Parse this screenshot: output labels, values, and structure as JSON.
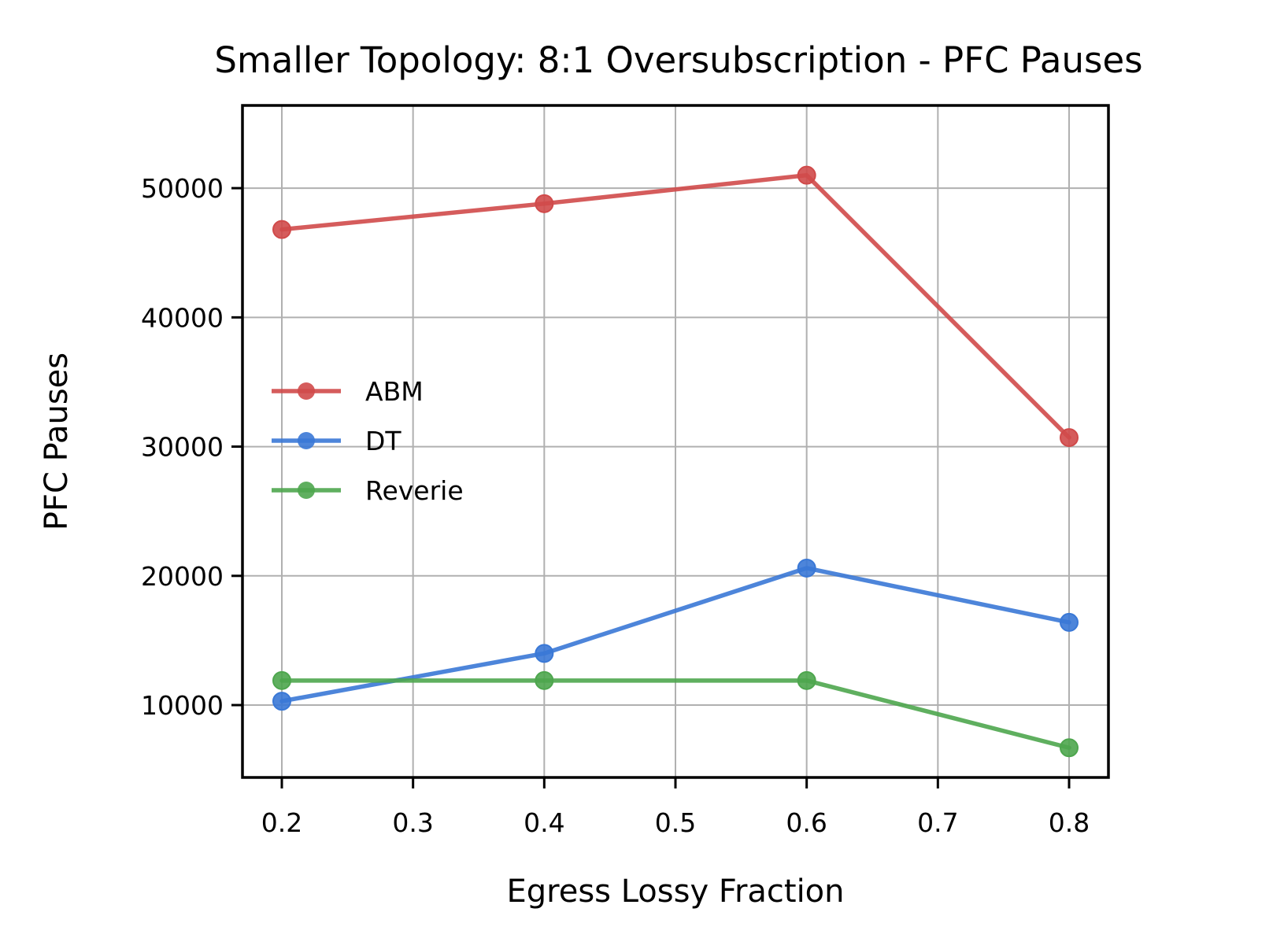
{
  "chart_data": {
    "type": "line",
    "title": "Smaller Topology: 8:1 Oversubscription - PFC Pauses",
    "xlabel": "Egress Lossy Fraction",
    "ylabel": "PFC Pauses",
    "x": [
      0.2,
      0.4,
      0.6,
      0.8
    ],
    "xlim": [
      0.17,
      0.83
    ],
    "ylim": [
      4400,
      56400
    ],
    "xticks": [
      0.2,
      0.3,
      0.4,
      0.5,
      0.6,
      0.7,
      0.8
    ],
    "xtick_labels": [
      "0.2",
      "0.3",
      "0.4",
      "0.5",
      "0.6",
      "0.7",
      "0.8"
    ],
    "yticks": [
      10000,
      20000,
      30000,
      40000,
      50000
    ],
    "ytick_labels": [
      "10000",
      "20000",
      "30000",
      "40000",
      "50000"
    ],
    "grid": true,
    "legend_position": "center-left",
    "series": [
      {
        "name": "ABM",
        "color": "#d04a4a",
        "marker": "circle",
        "values": [
          46800,
          48800,
          51000,
          30700
        ]
      },
      {
        "name": "DT",
        "color": "#3a78d6",
        "marker": "circle",
        "values": [
          10300,
          14000,
          20600,
          16400
        ]
      },
      {
        "name": "Reverie",
        "color": "#4ea64e",
        "marker": "circle",
        "values": [
          11900,
          11900,
          11900,
          6700
        ]
      }
    ]
  }
}
